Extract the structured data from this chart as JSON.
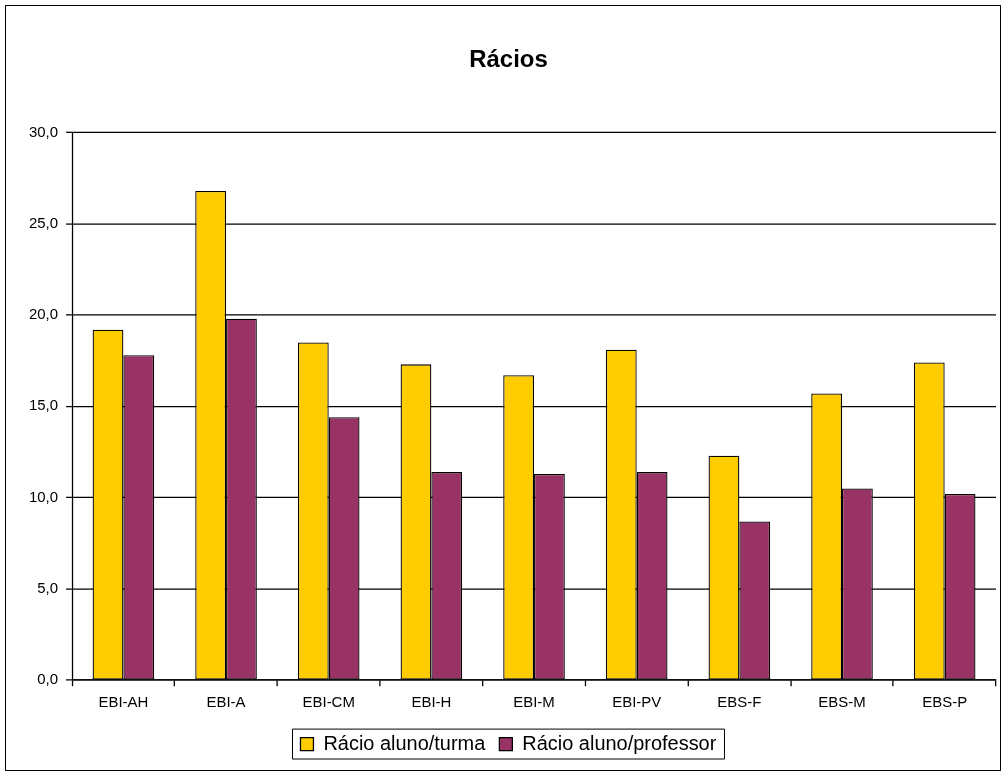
{
  "chart_data": {
    "type": "bar",
    "title": "Rácios",
    "categories": [
      "EBI-AH",
      "EBI-A",
      "EBI-CM",
      "EBI-H",
      "EBI-M",
      "EBI-PV",
      "EBS-F",
      "EBS-M",
      "EBS-P"
    ],
    "series": [
      {
        "name": "Rácio aluno/turma",
        "color": "#ffcc00",
        "values": [
          19.2,
          26.8,
          18.5,
          17.3,
          16.7,
          18.1,
          12.3,
          15.7,
          17.4
        ]
      },
      {
        "name": "Rácio aluno/professor",
        "color": "#993366",
        "values": [
          17.8,
          19.8,
          14.4,
          11.4,
          11.3,
          11.4,
          8.7,
          10.5,
          10.2
        ]
      }
    ],
    "ylim": [
      0,
      30
    ],
    "yticks": [
      {
        "value": 0,
        "label": "0,0"
      },
      {
        "value": 5,
        "label": "5,0"
      },
      {
        "value": 10,
        "label": "10,0"
      },
      {
        "value": 15,
        "label": "15,0"
      },
      {
        "value": 20,
        "label": "20,0"
      },
      {
        "value": 25,
        "label": "25,0"
      },
      {
        "value": 30,
        "label": "30,0"
      }
    ],
    "grid": "y",
    "legend": "bottom"
  }
}
